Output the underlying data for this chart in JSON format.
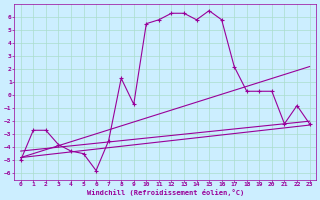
{
  "xlabel": "Windchill (Refroidissement éolien,°C)",
  "background_color": "#cceeff",
  "grid_color": "#aaddcc",
  "line_color": "#990099",
  "xlim": [
    -0.5,
    23.5
  ],
  "ylim": [
    -6.5,
    7.0
  ],
  "xticks": [
    0,
    1,
    2,
    3,
    4,
    5,
    6,
    7,
    8,
    9,
    10,
    11,
    12,
    13,
    14,
    15,
    16,
    17,
    18,
    19,
    20,
    21,
    22,
    23
  ],
  "yticks": [
    -6,
    -5,
    -4,
    -3,
    -2,
    -1,
    0,
    1,
    2,
    3,
    4,
    5,
    6
  ],
  "series": [
    [
      0,
      -5.0
    ],
    [
      1,
      -2.7
    ],
    [
      2,
      -2.7
    ],
    [
      3,
      -3.8
    ],
    [
      4,
      -4.3
    ],
    [
      5,
      -4.5
    ],
    [
      6,
      -5.8
    ],
    [
      7,
      -3.5
    ],
    [
      8,
      1.3
    ],
    [
      9,
      -0.7
    ],
    [
      10,
      5.5
    ],
    [
      11,
      5.8
    ],
    [
      12,
      6.3
    ],
    [
      13,
      6.3
    ],
    [
      14,
      5.8
    ],
    [
      15,
      6.5
    ],
    [
      16,
      5.8
    ],
    [
      17,
      2.2
    ],
    [
      18,
      0.3
    ],
    [
      19,
      0.3
    ],
    [
      20,
      0.3
    ],
    [
      21,
      -2.2
    ],
    [
      22,
      -0.8
    ],
    [
      23,
      -2.2
    ]
  ],
  "line2": [
    [
      0,
      -4.8
    ],
    [
      23,
      2.2
    ]
  ],
  "line3": [
    [
      0,
      -4.8
    ],
    [
      23,
      -2.3
    ]
  ],
  "line4": [
    [
      0,
      -4.3
    ],
    [
      23,
      -2.0
    ]
  ]
}
